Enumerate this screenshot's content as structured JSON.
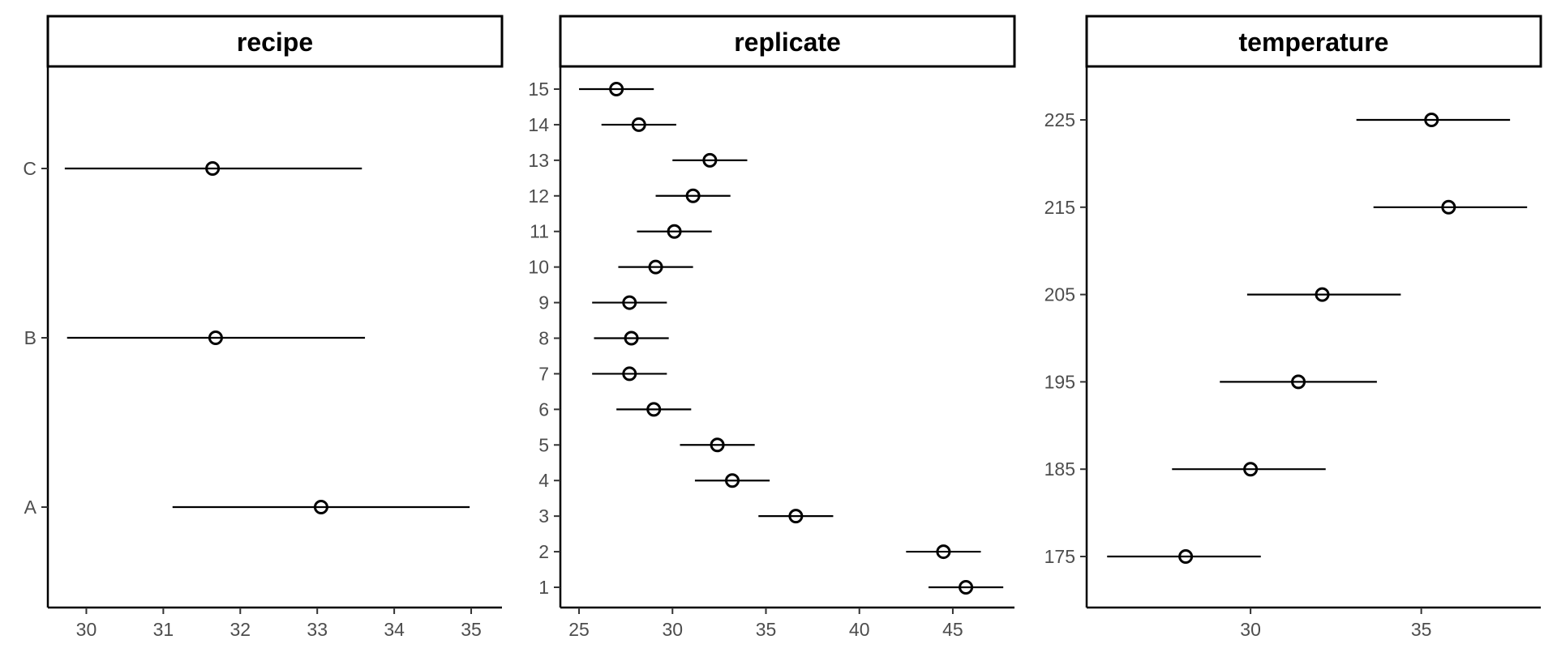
{
  "chart_data": [
    {
      "type": "scatter",
      "title": "recipe",
      "xlabel": "",
      "ylabel": "",
      "xlim": [
        29.5,
        35.4
      ],
      "x_ticks": [
        "30",
        "31",
        "32",
        "33",
        "34",
        "35"
      ],
      "categories": [
        "A",
        "B",
        "C"
      ],
      "points": [
        {
          "label": "A",
          "estimate": 33.05,
          "lower": 31.12,
          "upper": 34.98
        },
        {
          "label": "B",
          "estimate": 31.68,
          "lower": 29.75,
          "upper": 33.62
        },
        {
          "label": "C",
          "estimate": 31.64,
          "lower": 29.72,
          "upper": 33.58
        }
      ]
    },
    {
      "type": "scatter",
      "title": "replicate",
      "xlabel": "",
      "ylabel": "",
      "xlim": [
        24.0,
        48.3
      ],
      "x_ticks": [
        "25",
        "30",
        "35",
        "40",
        "45"
      ],
      "categories": [
        "1",
        "2",
        "3",
        "4",
        "5",
        "6",
        "7",
        "8",
        "9",
        "10",
        "11",
        "12",
        "13",
        "14",
        "15"
      ],
      "points": [
        {
          "label": "1",
          "estimate": 45.7,
          "lower": 43.7,
          "upper": 47.7
        },
        {
          "label": "2",
          "estimate": 44.5,
          "lower": 42.5,
          "upper": 46.5
        },
        {
          "label": "3",
          "estimate": 36.6,
          "lower": 34.6,
          "upper": 38.6
        },
        {
          "label": "4",
          "estimate": 33.2,
          "lower": 31.2,
          "upper": 35.2
        },
        {
          "label": "5",
          "estimate": 32.4,
          "lower": 30.4,
          "upper": 34.4
        },
        {
          "label": "6",
          "estimate": 29.0,
          "lower": 27.0,
          "upper": 31.0
        },
        {
          "label": "7",
          "estimate": 27.7,
          "lower": 25.7,
          "upper": 29.7
        },
        {
          "label": "8",
          "estimate": 27.8,
          "lower": 25.8,
          "upper": 29.8
        },
        {
          "label": "9",
          "estimate": 27.7,
          "lower": 25.7,
          "upper": 29.7
        },
        {
          "label": "10",
          "estimate": 29.1,
          "lower": 27.1,
          "upper": 31.1
        },
        {
          "label": "11",
          "estimate": 30.1,
          "lower": 28.1,
          "upper": 32.1
        },
        {
          "label": "12",
          "estimate": 31.1,
          "lower": 29.1,
          "upper": 33.1
        },
        {
          "label": "13",
          "estimate": 32.0,
          "lower": 30.0,
          "upper": 34.0
        },
        {
          "label": "14",
          "estimate": 28.2,
          "lower": 26.2,
          "upper": 30.2
        },
        {
          "label": "15",
          "estimate": 27.0,
          "lower": 25.0,
          "upper": 29.0
        }
      ]
    },
    {
      "type": "scatter",
      "title": "temperature",
      "xlabel": "",
      "ylabel": "",
      "xlim": [
        25.2,
        38.5
      ],
      "x_ticks": [
        "30",
        "35"
      ],
      "categories": [
        "175",
        "185",
        "195",
        "205",
        "215",
        "225"
      ],
      "points": [
        {
          "label": "175",
          "estimate": 28.1,
          "lower": 25.8,
          "upper": 30.3
        },
        {
          "label": "185",
          "estimate": 30.0,
          "lower": 27.7,
          "upper": 32.2
        },
        {
          "label": "195",
          "estimate": 31.4,
          "lower": 29.1,
          "upper": 33.7
        },
        {
          "label": "205",
          "estimate": 32.1,
          "lower": 29.9,
          "upper": 34.4
        },
        {
          "label": "215",
          "estimate": 35.8,
          "lower": 33.6,
          "upper": 38.1
        },
        {
          "label": "225",
          "estimate": 35.3,
          "lower": 33.1,
          "upper": 37.6
        }
      ]
    }
  ]
}
